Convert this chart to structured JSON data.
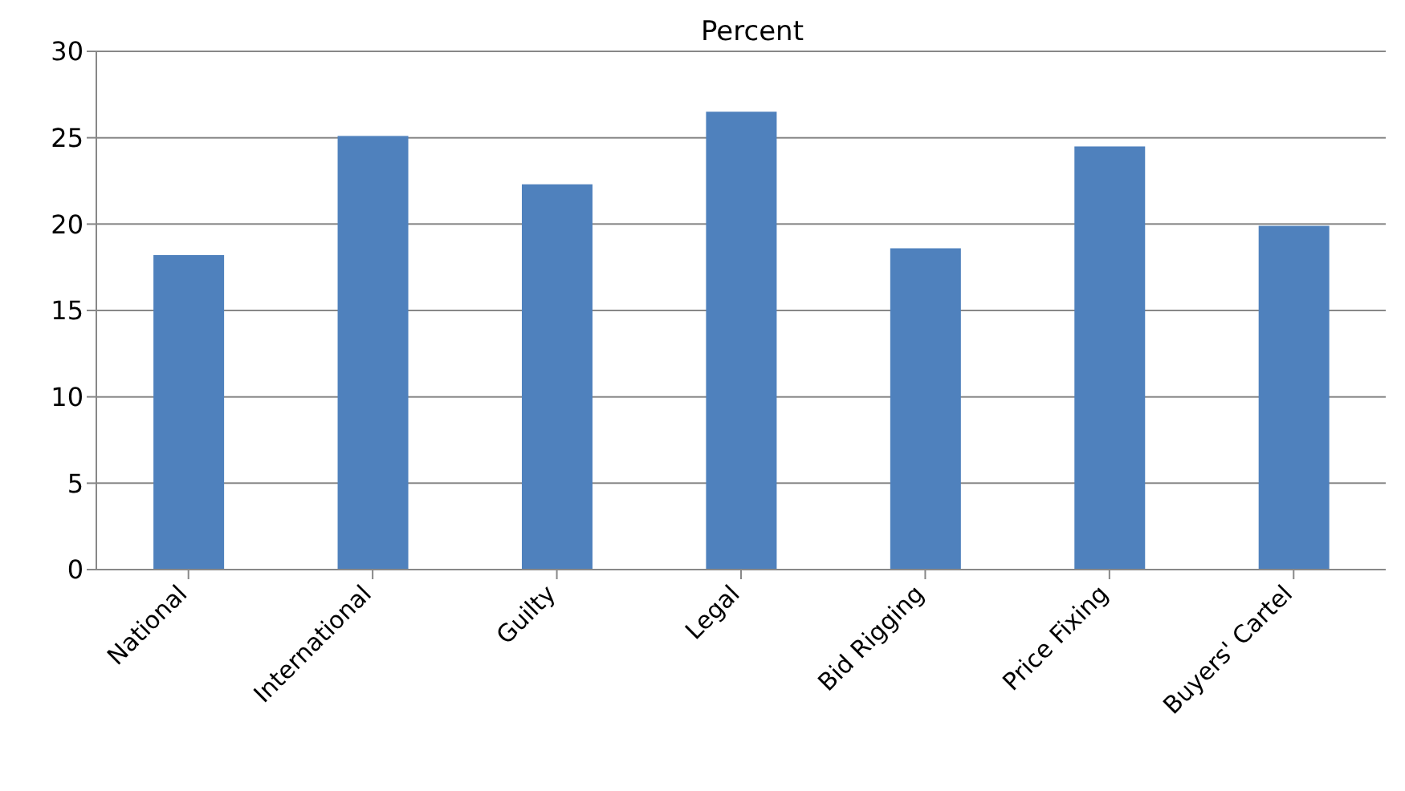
{
  "chart_data": {
    "type": "bar",
    "title": "Percent",
    "categories": [
      "National",
      "International",
      "Guilty",
      "Legal",
      "Bid Rigging",
      "Price Fixing",
      "Buyers' Cartel"
    ],
    "values": [
      18.2,
      25.1,
      22.3,
      26.5,
      18.6,
      24.5,
      19.9
    ],
    "color": "#4f81bd",
    "ylim": [
      0,
      30
    ],
    "yticks": [
      0,
      5,
      10,
      15,
      20,
      25,
      30
    ],
    "grid": "y"
  }
}
